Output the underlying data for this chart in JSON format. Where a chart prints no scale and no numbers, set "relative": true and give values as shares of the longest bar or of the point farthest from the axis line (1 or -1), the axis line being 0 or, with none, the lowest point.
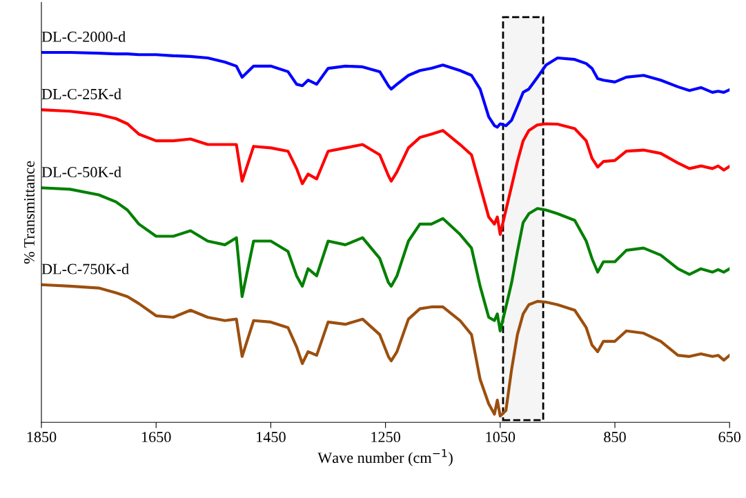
{
  "chart_data": {
    "type": "line",
    "relative": true,
    "ylabel": "% Transmittance",
    "xlabel": "Wave number (cm$^{−1}$)",
    "xlim": [
      1850,
      650
    ],
    "xticks": [
      1850,
      1650,
      1450,
      1250,
      1050,
      850,
      650
    ],
    "grid": false,
    "legend": false,
    "marker": "none",
    "line_style": "solid",
    "x": [
      1850,
      1800,
      1750,
      1720,
      1700,
      1680,
      1650,
      1620,
      1590,
      1560,
      1530,
      1510,
      1500,
      1480,
      1450,
      1420,
      1405,
      1395,
      1385,
      1370,
      1350,
      1320,
      1290,
      1260,
      1245,
      1240,
      1230,
      1210,
      1190,
      1170,
      1150,
      1120,
      1100,
      1085,
      1070,
      1060,
      1055,
      1050,
      1040,
      1030,
      1020,
      1010,
      1000,
      985,
      970,
      950,
      920,
      900,
      890,
      880,
      870,
      850,
      830,
      800,
      770,
      740,
      720,
      700,
      680,
      670,
      660,
      650
    ],
    "series": [
      {
        "name": "DL-C-2000-d",
        "color": "#0000ff",
        "values": [
          1.0,
          1.0,
          0.998,
          0.996,
          0.996,
          0.994,
          0.994,
          0.991,
          0.989,
          0.985,
          0.974,
          0.963,
          0.933,
          0.963,
          0.963,
          0.948,
          0.914,
          0.91,
          0.925,
          0.914,
          0.957,
          0.963,
          0.961,
          0.948,
          0.91,
          0.901,
          0.914,
          0.938,
          0.951,
          0.957,
          0.966,
          0.951,
          0.938,
          0.901,
          0.826,
          0.802,
          0.798,
          0.807,
          0.802,
          0.817,
          0.854,
          0.892,
          0.901,
          0.933,
          0.966,
          0.985,
          0.981,
          0.97,
          0.957,
          0.929,
          0.925,
          0.92,
          0.933,
          0.938,
          0.925,
          0.907,
          0.897,
          0.905,
          0.892,
          0.895,
          0.892,
          0.899
        ]
      },
      {
        "name": "DL-C-25K-d",
        "color": "#ff0000",
        "values": [
          0.845,
          0.841,
          0.832,
          0.821,
          0.807,
          0.779,
          0.761,
          0.761,
          0.766,
          0.751,
          0.751,
          0.751,
          0.652,
          0.746,
          0.742,
          0.733,
          0.686,
          0.645,
          0.671,
          0.658,
          0.733,
          0.742,
          0.751,
          0.723,
          0.667,
          0.652,
          0.677,
          0.742,
          0.77,
          0.779,
          0.789,
          0.751,
          0.723,
          0.639,
          0.555,
          0.536,
          0.555,
          0.508,
          0.574,
          0.639,
          0.705,
          0.761,
          0.789,
          0.804,
          0.807,
          0.806,
          0.794,
          0.761,
          0.714,
          0.69,
          0.705,
          0.708,
          0.733,
          0.736,
          0.727,
          0.701,
          0.686,
          0.693,
          0.686,
          0.693,
          0.682,
          0.692
        ]
      },
      {
        "name": "DL-C-50K-d",
        "color": "#008000",
        "values": [
          0.634,
          0.63,
          0.615,
          0.596,
          0.574,
          0.536,
          0.503,
          0.503,
          0.518,
          0.49,
          0.48,
          0.499,
          0.34,
          0.49,
          0.49,
          0.462,
          0.396,
          0.368,
          0.415,
          0.396,
          0.49,
          0.48,
          0.499,
          0.443,
          0.378,
          0.368,
          0.396,
          0.49,
          0.536,
          0.536,
          0.551,
          0.508,
          0.471,
          0.368,
          0.284,
          0.275,
          0.293,
          0.247,
          0.312,
          0.378,
          0.462,
          0.54,
          0.564,
          0.578,
          0.574,
          0.564,
          0.546,
          0.49,
          0.443,
          0.406,
          0.434,
          0.434,
          0.465,
          0.471,
          0.452,
          0.415,
          0.4,
          0.415,
          0.406,
          0.413,
          0.406,
          0.415
        ]
      },
      {
        "name": "DL-C-750K-d",
        "color": "#9c4f0e",
        "values": [
          0.372,
          0.368,
          0.363,
          0.35,
          0.34,
          0.321,
          0.288,
          0.284,
          0.303,
          0.284,
          0.275,
          0.279,
          0.178,
          0.275,
          0.271,
          0.256,
          0.204,
          0.159,
          0.191,
          0.181,
          0.271,
          0.265,
          0.279,
          0.237,
          0.178,
          0.166,
          0.191,
          0.279,
          0.307,
          0.312,
          0.312,
          0.275,
          0.237,
          0.116,
          0.05,
          0.022,
          0.06,
          0.017,
          0.032,
          0.144,
          0.237,
          0.293,
          0.318,
          0.327,
          0.325,
          0.318,
          0.303,
          0.256,
          0.209,
          0.191,
          0.219,
          0.219,
          0.247,
          0.241,
          0.219,
          0.181,
          0.178,
          0.185,
          0.178,
          0.181,
          0.168,
          0.181
        ]
      }
    ],
    "bands": [
      {
        "axis": "x",
        "from": 1045,
        "to": 975,
        "color": "#000000"
      }
    ]
  }
}
